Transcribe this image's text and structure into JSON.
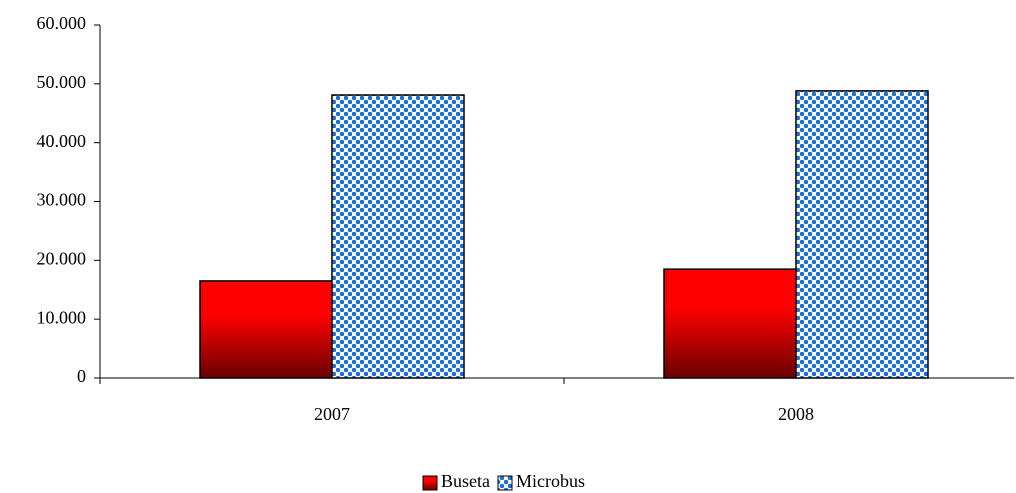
{
  "chart_data": {
    "type": "bar",
    "categories": [
      "2007",
      "2008"
    ],
    "series": [
      {
        "name": "Buseta",
        "color": "#ff0000",
        "values": [
          16500,
          18500
        ]
      },
      {
        "name": "Microbus",
        "color": "#1e6fd6",
        "values": [
          48100,
          48800
        ]
      }
    ],
    "ylim": [
      0,
      60000
    ],
    "yticks": [
      0,
      {
        "value": 10000,
        "label": "10.000"
      },
      {
        "value": 20000,
        "label": "20.000"
      },
      {
        "value": 30000,
        "label": "30.000"
      },
      {
        "value": 40000,
        "label": "40.000"
      },
      {
        "value": 50000,
        "label": "50.000"
      },
      {
        "value": 60000,
        "label": "60.000"
      }
    ],
    "legend": "bottom"
  }
}
